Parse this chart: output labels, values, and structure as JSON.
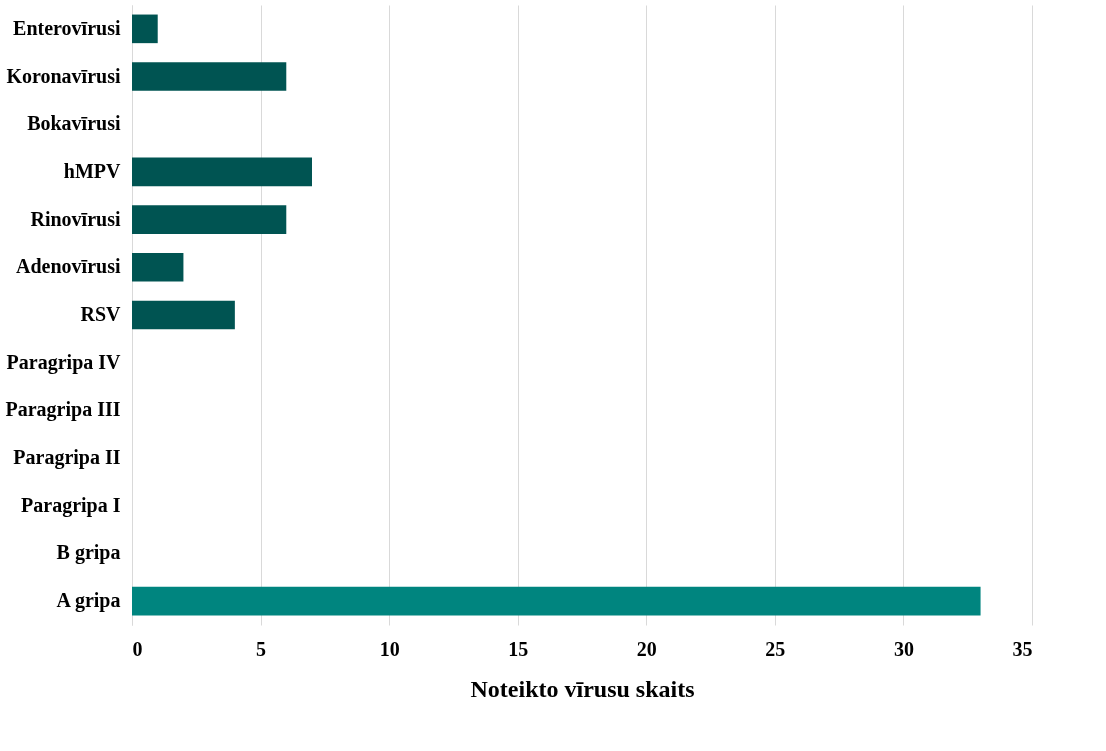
{
  "chart_data": {
    "type": "bar",
    "orientation": "horizontal",
    "xlabel": "Noteikto vīrusu skaits",
    "categories": [
      "Enterovīrusi",
      "Koronavīrusi",
      "Bokavīrusi",
      "hMPV",
      "Rinovīrusi",
      "Adenovīrusi",
      "RSV",
      "Paragripa IV",
      "Paragripa III",
      "Paragripa II",
      "Paragripa I",
      "B gripa",
      "A gripa"
    ],
    "values": [
      1,
      6,
      0,
      7,
      6,
      2,
      4,
      0,
      0,
      0,
      0,
      0,
      33
    ],
    "colors": [
      "#005452",
      "#005452",
      "#005452",
      "#005452",
      "#005452",
      "#005452",
      "#005452",
      "#005452",
      "#005452",
      "#005452",
      "#005452",
      "#005452",
      "#00857f"
    ],
    "xlim": [
      0,
      35
    ],
    "xticks": [
      0,
      5,
      10,
      15,
      20,
      25,
      30,
      35
    ],
    "grid": "x"
  }
}
